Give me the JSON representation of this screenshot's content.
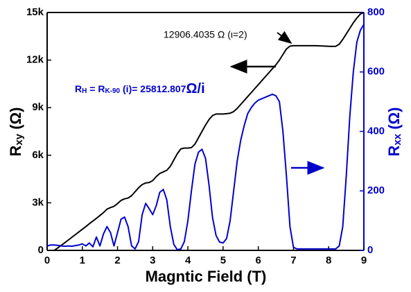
{
  "chart_data": {
    "type": "line",
    "xlabel": "Magntic Field (T)",
    "ylabel": [
      "R",
      "xy",
      " (Ω)"
    ],
    "y2label": [
      "R",
      "xx",
      " (Ω)"
    ],
    "annotations": {
      "plateau": "12906.4035 Ω (ι=2)",
      "formula": [
        "R",
        "H",
        " = R",
        "K-90",
        " (i)= 25812.807",
        "Ω/i"
      ]
    },
    "xlim": [
      0,
      9
    ],
    "xticks": [
      0,
      1,
      2,
      3,
      4,
      5,
      6,
      7,
      8,
      9
    ],
    "ylim": [
      0,
      15000
    ],
    "yticks": [
      0,
      {
        "value": 3000,
        "label": "3k"
      },
      {
        "value": 6000,
        "label": "6k"
      },
      {
        "value": 9000,
        "label": "9k"
      },
      {
        "value": 12000,
        "label": "12k"
      },
      {
        "value": 15000,
        "label": "15k"
      }
    ],
    "y2lim": [
      0,
      800
    ],
    "y2ticks": [
      0,
      200,
      400,
      600,
      800
    ],
    "x": [
      0.0,
      0.1,
      0.2,
      0.3,
      0.4,
      0.5,
      0.6,
      0.7,
      0.8,
      0.9,
      1.0,
      1.1,
      1.2,
      1.3,
      1.4,
      1.5,
      1.6,
      1.7,
      1.8,
      1.9,
      2.0,
      2.1,
      2.2,
      2.3,
      2.4,
      2.5,
      2.6,
      2.7,
      2.8,
      2.9,
      3.0,
      3.1,
      3.2,
      3.3,
      3.4,
      3.5,
      3.6,
      3.7,
      3.8,
      3.9,
      4.0,
      4.1,
      4.2,
      4.3,
      4.4,
      4.5,
      4.6,
      4.7,
      4.8,
      4.9,
      5.0,
      5.1,
      5.2,
      5.3,
      5.4,
      5.5,
      5.6,
      5.7,
      5.8,
      5.9,
      6.0,
      6.1,
      6.2,
      6.3,
      6.4,
      6.5,
      6.6,
      6.7,
      6.8,
      6.9,
      7.0,
      7.1,
      7.2,
      7.3,
      7.4,
      7.5,
      7.6,
      7.7,
      7.8,
      7.9,
      8.0,
      8.1,
      8.2,
      8.3,
      8.4,
      8.5,
      8.6,
      8.7,
      8.8,
      8.9,
      9.0
    ],
    "series": [
      {
        "color": "#000000",
        "values": [
          null,
          null,
          0,
          150,
          320,
          480,
          650,
          820,
          990,
          1160,
          1330,
          1500,
          1680,
          1850,
          2020,
          2200,
          2380,
          2600,
          2700,
          2780,
          2950,
          3150,
          3250,
          3300,
          3450,
          3700,
          3950,
          4150,
          4250,
          4280,
          4400,
          4650,
          4850,
          4950,
          5050,
          5300,
          5700,
          6100,
          6400,
          6450,
          6450,
          6480,
          6700,
          7100,
          7500,
          7900,
          8250,
          8500,
          8600,
          8600,
          8600,
          8620,
          8650,
          8750,
          8950,
          9200,
          9450,
          9700,
          9950,
          10200,
          10450,
          10700,
          10950,
          11200,
          11450,
          11700,
          12000,
          12350,
          12700,
          12880,
          12906,
          12906,
          12906,
          12906,
          12906,
          12906,
          12906,
          12900,
          12890,
          12880,
          12870,
          12860,
          12870,
          13000,
          13300,
          13650,
          14000,
          14350,
          14650,
          14900,
          15000
        ]
      },
      {
        "color": "#0000cc",
        "axis": "y2",
        "values": [
          15,
          18,
          18,
          17,
          15,
          14,
          15,
          14,
          16,
          18,
          22,
          15,
          25,
          12,
          45,
          15,
          55,
          80,
          60,
          15,
          60,
          105,
          112,
          80,
          15,
          5,
          30,
          120,
          158,
          140,
          120,
          150,
          195,
          205,
          170,
          80,
          20,
          2,
          5,
          30,
          100,
          200,
          290,
          330,
          340,
          310,
          220,
          110,
          50,
          28,
          25,
          40,
          100,
          200,
          300,
          370,
          420,
          460,
          480,
          495,
          505,
          510,
          515,
          520,
          525,
          520,
          500,
          400,
          250,
          80,
          10,
          5,
          5,
          5,
          5,
          5,
          5,
          5,
          5,
          5,
          5,
          5,
          5,
          15,
          80,
          250,
          450,
          600,
          700,
          740,
          760
        ]
      }
    ]
  }
}
